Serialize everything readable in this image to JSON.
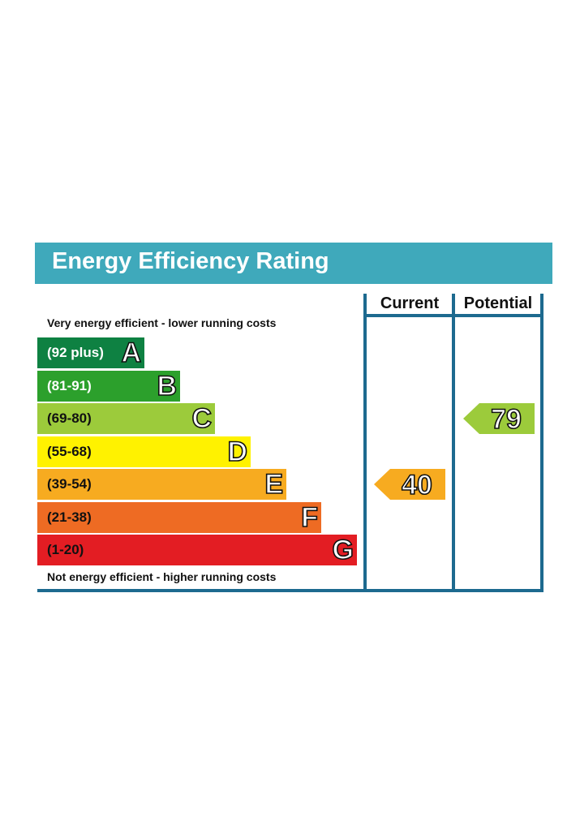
{
  "title": "Energy Efficiency Rating",
  "columns": {
    "current": "Current",
    "potential": "Potential"
  },
  "captions": {
    "top": "Very energy efficient - lower running costs",
    "bottom": "Not energy efficient - higher running costs"
  },
  "chart_data": {
    "type": "bar",
    "title": "Energy Efficiency Rating",
    "categories": [
      "A",
      "B",
      "C",
      "D",
      "E",
      "F",
      "G"
    ],
    "ranges": [
      "(92 plus)",
      "(81-91)",
      "(69-80)",
      "(55-68)",
      "(39-54)",
      "(21-38)",
      "(1-20)"
    ],
    "colors": [
      "#0e8142",
      "#2ca02c",
      "#9ccb3b",
      "#fff200",
      "#f7ab20",
      "#ee6b23",
      "#e31d23"
    ],
    "range_text_colors": [
      "#ffffff",
      "#ffffff",
      "#111111",
      "#111111",
      "#111111",
      "#111111",
      "#111111"
    ],
    "current": {
      "label": "Current",
      "value": 40,
      "band": "E",
      "color": "#f7ab20"
    },
    "potential": {
      "label": "Potential",
      "value": 79,
      "band": "C",
      "color": "#9ccb3b"
    }
  }
}
